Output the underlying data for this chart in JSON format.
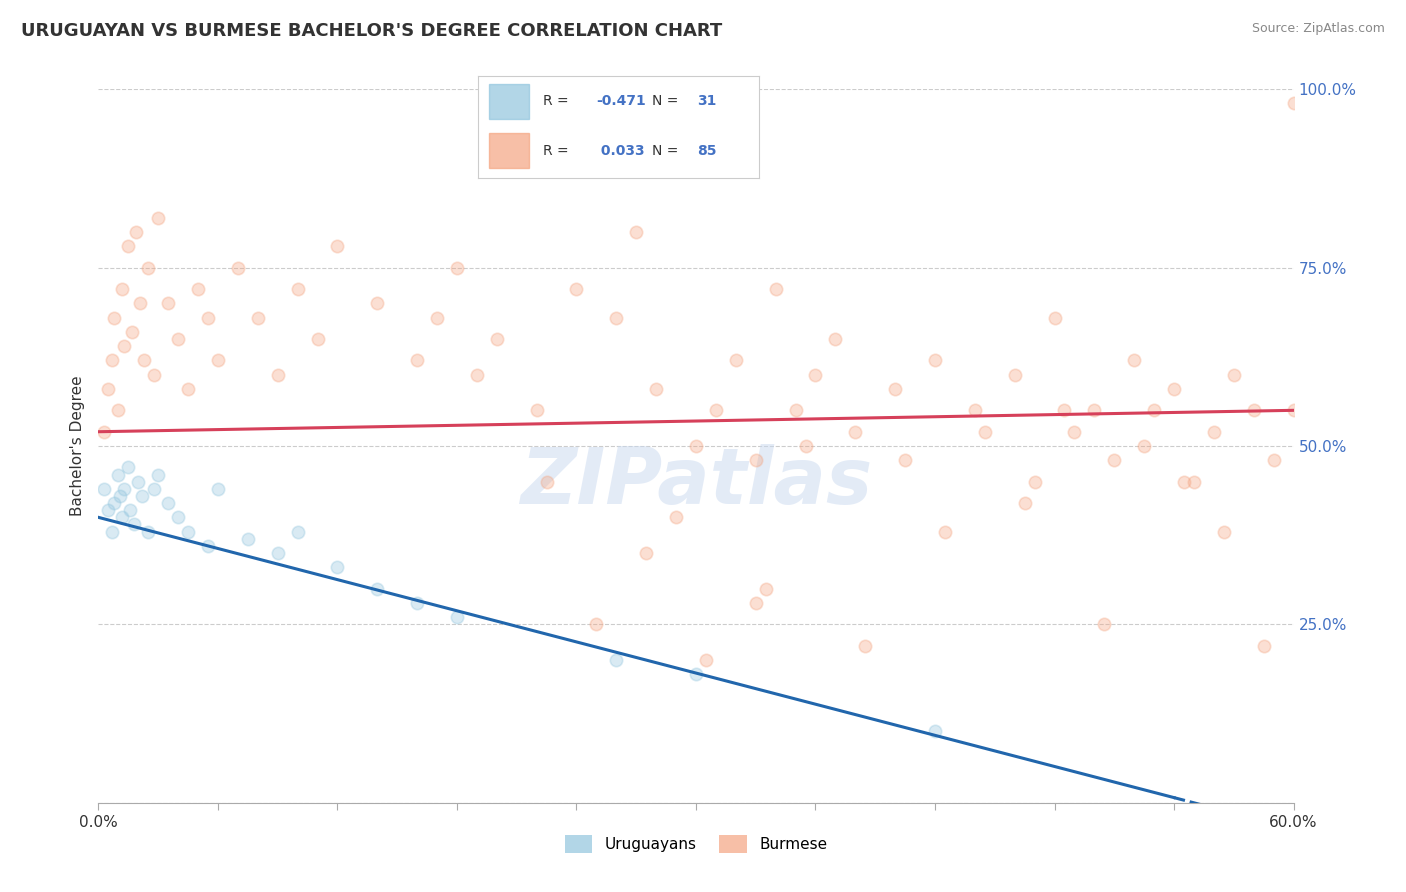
{
  "title": "URUGUAYAN VS BURMESE BACHELOR'S DEGREE CORRELATION CHART",
  "source": "Source: ZipAtlas.com",
  "ylabel": "Bachelor's Degree",
  "xlim": [
    0.0,
    60.0
  ],
  "ylim": [
    0.0,
    100.0
  ],
  "x_ticks": [
    0.0,
    6.0,
    12.0,
    18.0,
    24.0,
    30.0,
    36.0,
    42.0,
    48.0,
    54.0,
    60.0
  ],
  "y_ticks_right": [
    0.0,
    25.0,
    50.0,
    75.0,
    100.0
  ],
  "legend_R_uruguayan": "-0.471",
  "legend_N_uruguayan": "31",
  "legend_R_burmese": "0.033",
  "legend_N_burmese": "85",
  "uruguayan_color": "#92c5de",
  "burmese_color": "#f4a582",
  "uruguayan_line_color": "#2166ac",
  "burmese_line_color": "#d6405a",
  "watermark": "ZIPatlas",
  "uruguayan_x": [
    0.3,
    0.5,
    0.7,
    0.8,
    1.0,
    1.1,
    1.2,
    1.3,
    1.5,
    1.6,
    1.8,
    2.0,
    2.2,
    2.5,
    2.8,
    3.0,
    3.5,
    4.0,
    4.5,
    5.5,
    6.0,
    7.5,
    9.0,
    10.0,
    12.0,
    14.0,
    16.0,
    18.0,
    26.0,
    30.0,
    42.0
  ],
  "uruguayan_y": [
    44.0,
    41.0,
    38.0,
    42.0,
    46.0,
    43.0,
    40.0,
    44.0,
    47.0,
    41.0,
    39.0,
    45.0,
    43.0,
    38.0,
    44.0,
    46.0,
    42.0,
    40.0,
    38.0,
    36.0,
    44.0,
    37.0,
    35.0,
    38.0,
    33.0,
    30.0,
    28.0,
    26.0,
    20.0,
    18.0,
    10.0
  ],
  "burmese_x": [
    0.3,
    0.5,
    0.7,
    0.8,
    1.0,
    1.2,
    1.3,
    1.5,
    1.7,
    1.9,
    2.1,
    2.3,
    2.5,
    2.8,
    3.0,
    3.5,
    4.0,
    4.5,
    5.0,
    5.5,
    6.0,
    7.0,
    8.0,
    9.0,
    10.0,
    11.0,
    12.0,
    14.0,
    16.0,
    17.0,
    18.0,
    19.0,
    20.0,
    22.0,
    24.0,
    26.0,
    27.0,
    28.0,
    30.0,
    32.0,
    33.0,
    34.0,
    35.0,
    36.0,
    37.0,
    38.0,
    40.0,
    42.0,
    44.0,
    46.0,
    47.0,
    48.0,
    49.0,
    50.0,
    51.0,
    52.0,
    53.0,
    54.0,
    55.0,
    56.0,
    57.0,
    58.0,
    59.0,
    60.0,
    29.0,
    31.0,
    33.5,
    35.5,
    38.5,
    40.5,
    42.5,
    44.5,
    46.5,
    48.5,
    50.5,
    52.5,
    54.5,
    56.5,
    58.5,
    60.0,
    22.5,
    25.0,
    27.5,
    30.5,
    33.0
  ],
  "burmese_y": [
    52.0,
    58.0,
    62.0,
    68.0,
    55.0,
    72.0,
    64.0,
    78.0,
    66.0,
    80.0,
    70.0,
    62.0,
    75.0,
    60.0,
    82.0,
    70.0,
    65.0,
    58.0,
    72.0,
    68.0,
    62.0,
    75.0,
    68.0,
    60.0,
    72.0,
    65.0,
    78.0,
    70.0,
    62.0,
    68.0,
    75.0,
    60.0,
    65.0,
    55.0,
    72.0,
    68.0,
    80.0,
    58.0,
    50.0,
    62.0,
    48.0,
    72.0,
    55.0,
    60.0,
    65.0,
    52.0,
    58.0,
    62.0,
    55.0,
    60.0,
    45.0,
    68.0,
    52.0,
    55.0,
    48.0,
    62.0,
    55.0,
    58.0,
    45.0,
    52.0,
    60.0,
    55.0,
    48.0,
    98.0,
    40.0,
    55.0,
    30.0,
    50.0,
    22.0,
    48.0,
    38.0,
    52.0,
    42.0,
    55.0,
    25.0,
    50.0,
    45.0,
    38.0,
    22.0,
    55.0,
    45.0,
    25.0,
    35.0,
    20.0,
    28.0
  ],
  "background_color": "#ffffff",
  "grid_color": "#cccccc",
  "title_fontsize": 13,
  "axis_fontsize": 11,
  "marker_size": 80,
  "marker_alpha": 0.35,
  "line_width": 2.2
}
